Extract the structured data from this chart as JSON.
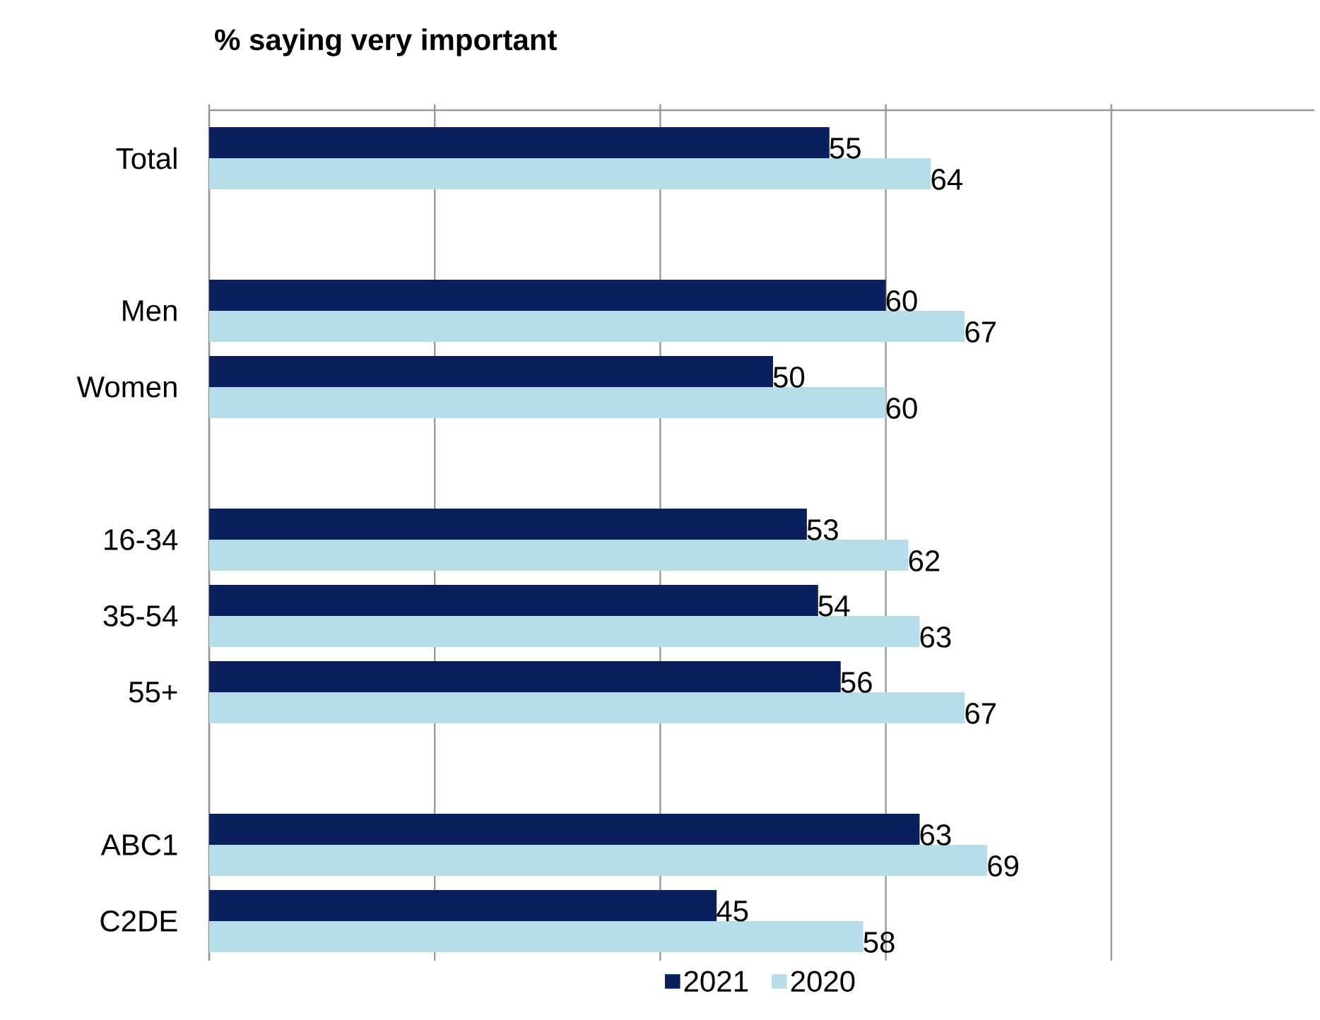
{
  "chart_data": {
    "type": "bar",
    "orientation": "horizontal",
    "title": "% saying very important",
    "categories": [
      "Total",
      null,
      "Men",
      "Women",
      null,
      "16-34",
      "35-54",
      "55+",
      null,
      "ABC1",
      "C2DE"
    ],
    "series": [
      {
        "name": "2021",
        "color": "#0b1f5c",
        "values": [
          55,
          null,
          60,
          50,
          null,
          53,
          54,
          56,
          null,
          63,
          45
        ]
      },
      {
        "name": "2020",
        "color": "#b7dde8",
        "values": [
          64,
          null,
          67,
          60,
          null,
          62,
          63,
          67,
          null,
          69,
          58
        ]
      }
    ],
    "xlim": [
      0,
      98
    ],
    "xticks": [
      {
        "value": 0,
        "label": null
      },
      {
        "value": 20,
        "label": null
      },
      {
        "value": 40,
        "label": null
      },
      {
        "value": 60,
        "label": null
      },
      {
        "value": 80,
        "label": null
      }
    ],
    "tick_labels": "y",
    "grid": "x",
    "legend": "bottom",
    "data_labels": true
  }
}
